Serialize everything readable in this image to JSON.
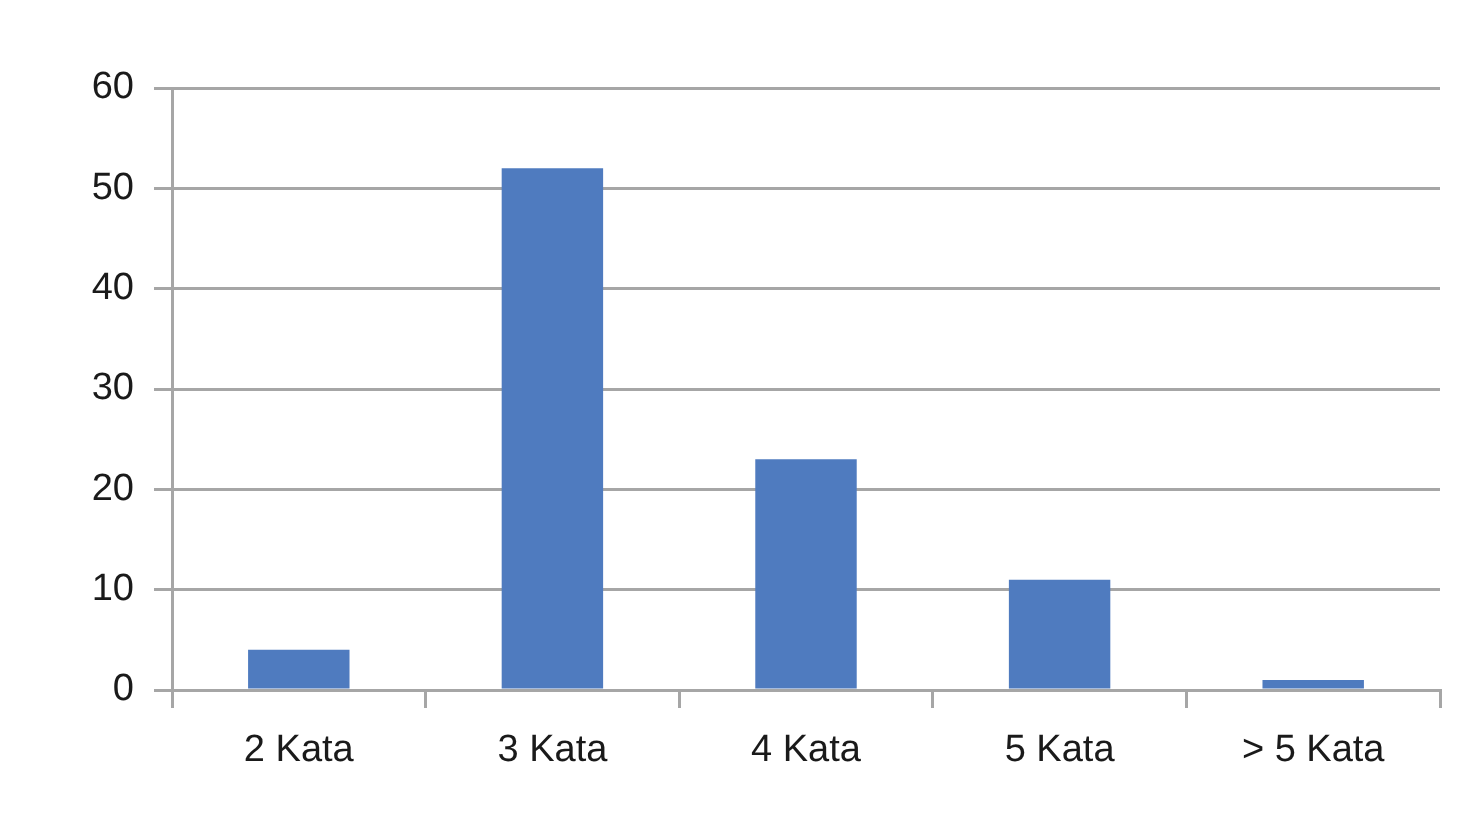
{
  "chart_data": {
    "type": "bar",
    "categories": [
      "2 Kata",
      "3 Kata",
      "4 Kata",
      "5 Kata",
      "> 5 Kata"
    ],
    "values": [
      4,
      52,
      23,
      11,
      1
    ],
    "color": "#4f7bbf",
    "ylim": [
      0,
      60
    ],
    "yticks": [
      0,
      10,
      20,
      30,
      40,
      50,
      60
    ],
    "grid": "y"
  }
}
